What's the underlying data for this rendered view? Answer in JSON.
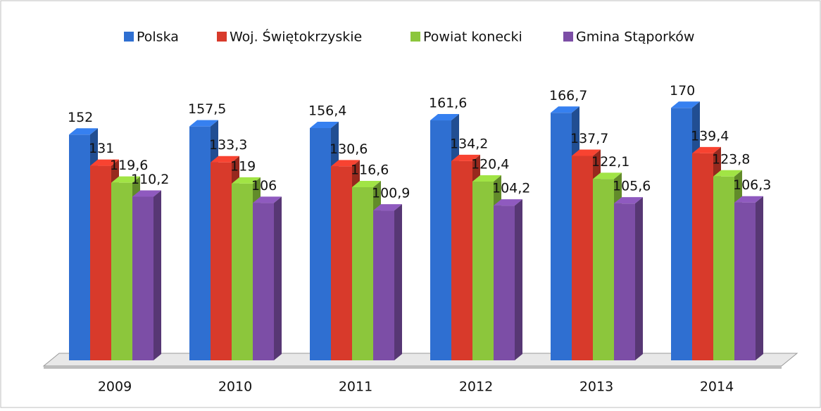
{
  "chart_data": {
    "type": "bar3d",
    "categories": [
      "2009",
      "2010",
      "2011",
      "2012",
      "2013",
      "2014"
    ],
    "series": [
      {
        "name": "Polska",
        "color": "#2f6fd1",
        "values": [
          152,
          157.5,
          156.4,
          161.6,
          166.7,
          170
        ],
        "value_labels": [
          "152",
          "157,5",
          "156,4",
          "161,6",
          "166,7",
          "170"
        ]
      },
      {
        "name": "Woj. Świętokrzyskie",
        "color": "#d83a2b",
        "values": [
          131,
          133.3,
          130.6,
          134.2,
          137.7,
          139.4
        ],
        "value_labels": [
          "131",
          "133,3",
          "130,6",
          "134,2",
          "137,7",
          "139,4"
        ]
      },
      {
        "name": "Powiat konecki",
        "color": "#8cc63c",
        "values": [
          119.6,
          119,
          116.6,
          120.4,
          122.1,
          123.8
        ],
        "value_labels": [
          "119,6",
          "119",
          "116,6",
          "120,4",
          "122,1",
          "123,8"
        ]
      },
      {
        "name": "Gmina Stąporków",
        "color": "#7c4ea6",
        "values": [
          110.2,
          106,
          100.9,
          104.2,
          105.6,
          106.3
        ],
        "value_labels": [
          "110,2",
          "106",
          "100,9",
          "104,2",
          "105,6",
          "106,3"
        ]
      }
    ],
    "legend": "top"
  }
}
